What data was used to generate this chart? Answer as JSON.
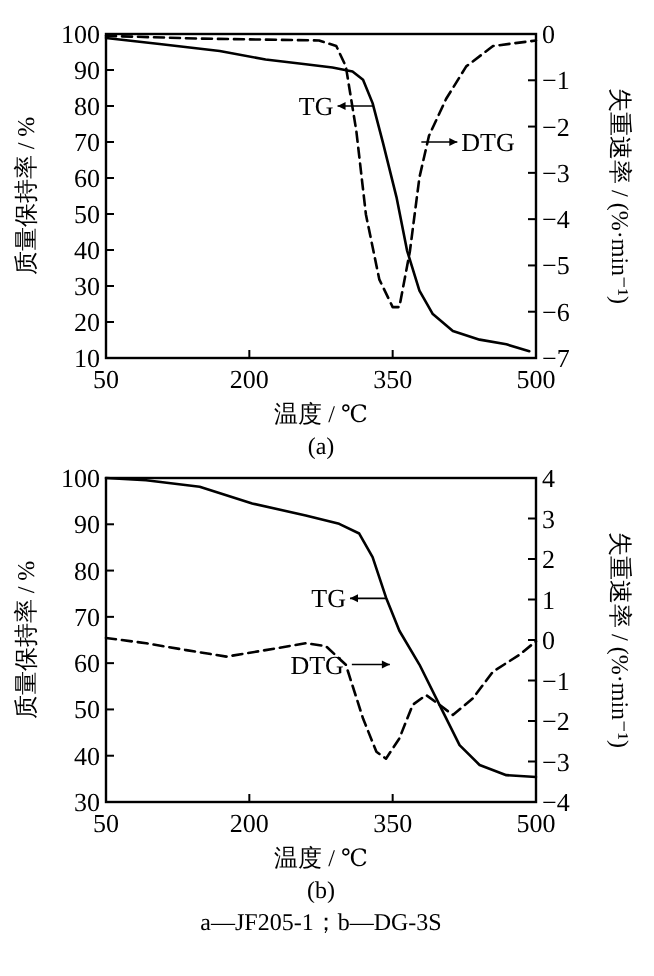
{
  "chart_data": [
    {
      "type": "line",
      "title": "(a)",
      "xlabel": "温度 / ℃",
      "ylabel": "质量保持率 / %",
      "y2label": "失重速率 / (%·min⁻¹)",
      "xlim": [
        50,
        500
      ],
      "xticks": [
        50,
        200,
        350,
        500
      ],
      "ylim": [
        10,
        100
      ],
      "yticks": [
        10,
        20,
        30,
        40,
        50,
        60,
        70,
        80,
        90,
        100
      ],
      "y2lim": [
        -7,
        0
      ],
      "y2ticks": [
        -7,
        -6,
        -5,
        -4,
        -3,
        -2,
        -1,
        0
      ],
      "series": [
        {
          "color": "#000000",
          "line_style": "solid",
          "x": [
            50,
            106,
            169,
            217,
            259,
            287,
            308,
            319,
            329,
            340,
            354,
            365,
            378,
            392,
            413,
            441,
            469,
            493
          ],
          "values": [
            98.9,
            97.2,
            95.3,
            92.9,
            91.6,
            90.7,
            89.6,
            87.3,
            80.8,
            69.6,
            54.7,
            39.9,
            28.7,
            22.2,
            17.5,
            15.1,
            13.8,
            11.9
          ]
        },
        {
          "color": "#000000",
          "line_style": "dashed",
          "axis": "y2",
          "x": [
            50,
            148,
            273,
            291,
            301,
            312,
            322,
            336,
            350,
            357,
            368,
            378,
            388,
            406,
            427,
            455,
            500
          ],
          "values": [
            -0.04,
            -0.1,
            -0.14,
            -0.26,
            -0.7,
            -2.1,
            -3.9,
            -5.3,
            -5.9,
            -5.9,
            -4.7,
            -3.1,
            -2.2,
            -1.4,
            -0.7,
            -0.26,
            -0.14
          ]
        }
      ],
      "annotations": [
        {
          "text": "TG",
          "x": 330,
          "y": 80
        },
        {
          "text": "DTG",
          "x": 380,
          "y": 70
        }
      ]
    },
    {
      "type": "line",
      "title": "(b)",
      "xlabel": "温度 / ℃",
      "ylabel": "质量保持率 / %",
      "y2label": "失重速率 / (%·min⁻¹)",
      "xlim": [
        50,
        500
      ],
      "xticks": [
        50,
        200,
        350,
        500
      ],
      "ylim": [
        30,
        100
      ],
      "yticks": [
        30,
        40,
        50,
        60,
        70,
        80,
        90,
        100
      ],
      "y2lim": [
        -4,
        4
      ],
      "y2ticks": [
        -4,
        -3,
        -2,
        -1,
        0,
        1,
        2,
        3,
        4
      ],
      "series": [
        {
          "color": "#000000",
          "line_style": "solid",
          "x": [
            50,
            92,
            148,
            203,
            259,
            294,
            315,
            329,
            343,
            357,
            378,
            399,
            420,
            441,
            469,
            500
          ],
          "values": [
            100,
            99.5,
            98.1,
            94.5,
            91.9,
            90.1,
            88,
            82.9,
            74.2,
            67,
            59.7,
            51,
            42.3,
            38,
            35.8,
            35.4
          ]
        },
        {
          "color": "#000000",
          "line_style": "dashed",
          "axis": "y2",
          "x": [
            50,
            92,
            134,
            176,
            217,
            259,
            280,
            301,
            319,
            333,
            343,
            357,
            371,
            385,
            399,
            413,
            434,
            455,
            483,
            500
          ],
          "values": [
            0.05,
            -0.08,
            -0.25,
            -0.41,
            -0.25,
            -0.08,
            -0.15,
            -0.61,
            -1.94,
            -2.76,
            -2.93,
            -2.43,
            -1.6,
            -1.36,
            -1.6,
            -1.85,
            -1.44,
            -0.78,
            -0.36,
            -0.03
          ]
        }
      ],
      "annotations": [
        {
          "text": "TG",
          "x": 343,
          "y": 74
        },
        {
          "text": "DTG",
          "x": 301,
          "y": 59.7
        },
        "a—JF205-1；b—DG-3S"
      ]
    }
  ]
}
